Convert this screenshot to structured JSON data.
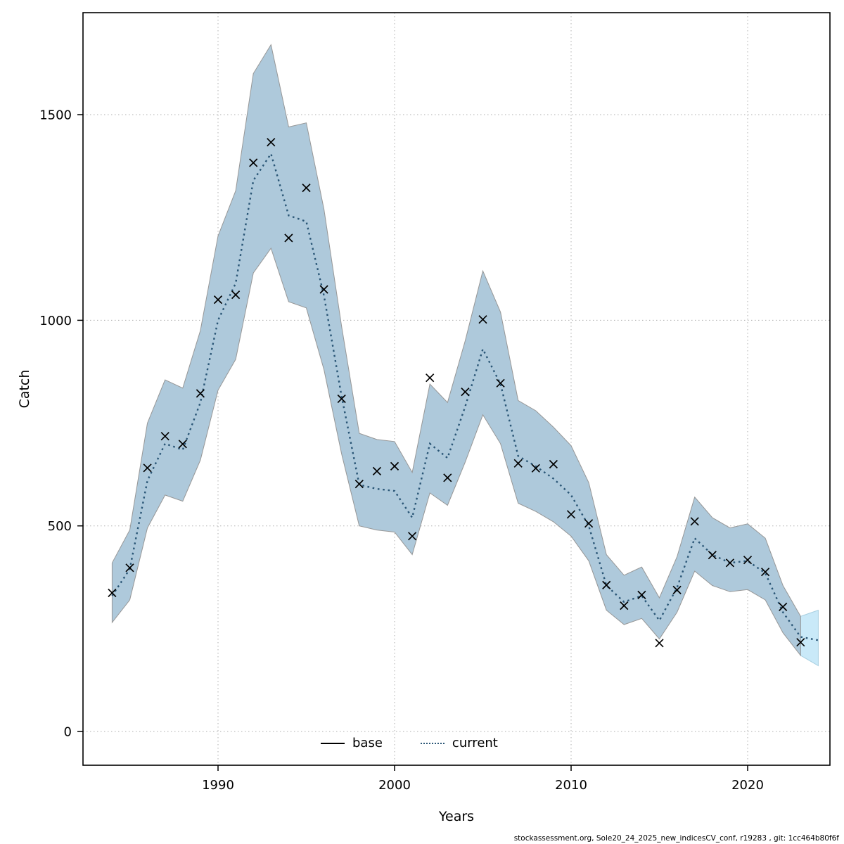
{
  "figure": {
    "xlabel": "Years",
    "ylabel": "Catch",
    "footer": "stockassessment.org, Sole20_24_2025_new_indicesCV_conf, r19283 , git: 1cc464b80f6f"
  },
  "legend": {
    "items": [
      {
        "label": "base",
        "style": "solid",
        "color": "#000000"
      },
      {
        "label": "current",
        "style": "dotted",
        "color": "#2A5676"
      }
    ]
  },
  "chart_data": {
    "type": "line",
    "title": "",
    "xlabel": "Years",
    "ylabel": "Catch",
    "xlim": [
      1982.35,
      2024.66
    ],
    "ylim": [
      -82,
      1748
    ],
    "xticks": [
      1990,
      2000,
      2010,
      2020
    ],
    "yticks": [
      0,
      500,
      1000,
      1500
    ],
    "grid": "dotted",
    "legend_position": "bottom-center-inside",
    "colors": {
      "confidence_band": "#AEC9DB",
      "forecast_band": "#C9E9F8",
      "band_edge": "#979797",
      "forecast_edge": "#A8CFE0",
      "current_line": "#2A5676",
      "base_line": "#000000",
      "marker": "#000000",
      "gridline": "#AFAFAF",
      "frame": "#000000"
    },
    "observations": {
      "marker": "x",
      "years": [
        1984,
        1985,
        1986,
        1987,
        1988,
        1989,
        1990,
        1991,
        1992,
        1993,
        1994,
        1995,
        1996,
        1997,
        1998,
        1999,
        2000,
        2001,
        2002,
        2003,
        2004,
        2005,
        2006,
        2007,
        2008,
        2009,
        2010,
        2011,
        2012,
        2013,
        2014,
        2015,
        2016,
        2017,
        2018,
        2019,
        2020,
        2021,
        2022,
        2023
      ],
      "catch": [
        337,
        398,
        641,
        718,
        699,
        822,
        1050,
        1062,
        1383,
        1433,
        1200,
        1322,
        1075,
        809,
        602,
        633,
        645,
        475,
        860,
        617,
        826,
        1002,
        847,
        652,
        640,
        650,
        528,
        506,
        356,
        306,
        332,
        215,
        344,
        511,
        429,
        410,
        417,
        388,
        303,
        217
      ]
    },
    "fit": {
      "years": [
        1984,
        1985,
        1986,
        1987,
        1988,
        1989,
        1990,
        1991,
        1992,
        1993,
        1994,
        1995,
        1996,
        1997,
        1998,
        1999,
        2000,
        2001,
        2002,
        2003,
        2004,
        2005,
        2006,
        2007,
        2008,
        2009,
        2010,
        2011,
        2012,
        2013,
        2014,
        2015,
        2016,
        2017,
        2018,
        2019,
        2020,
        2021,
        2022,
        2023,
        2024
      ],
      "estimate": [
        330,
        395,
        610,
        700,
        685,
        800,
        1000,
        1090,
        1340,
        1405,
        1255,
        1240,
        1060,
        815,
        600,
        590,
        585,
        520,
        700,
        665,
        790,
        930,
        845,
        670,
        645,
        615,
        575,
        500,
        355,
        315,
        330,
        270,
        350,
        470,
        430,
        410,
        415,
        385,
        290,
        230,
        222
      ],
      "lower": [
        265,
        320,
        495,
        575,
        560,
        660,
        830,
        905,
        1115,
        1175,
        1045,
        1030,
        880,
        675,
        500,
        490,
        485,
        430,
        580,
        550,
        655,
        770,
        700,
        555,
        535,
        510,
        475,
        415,
        295,
        260,
        275,
        225,
        290,
        390,
        355,
        340,
        345,
        320,
        240,
        185,
        160
      ],
      "upper": [
        410,
        490,
        750,
        855,
        835,
        975,
        1205,
        1315,
        1600,
        1670,
        1470,
        1480,
        1270,
        985,
        725,
        710,
        705,
        630,
        845,
        800,
        950,
        1120,
        1020,
        805,
        780,
        740,
        695,
        605,
        430,
        380,
        400,
        325,
        425,
        570,
        520,
        495,
        505,
        470,
        355,
        280,
        295
      ]
    },
    "forecast_years": [
      2023,
      2024
    ]
  }
}
